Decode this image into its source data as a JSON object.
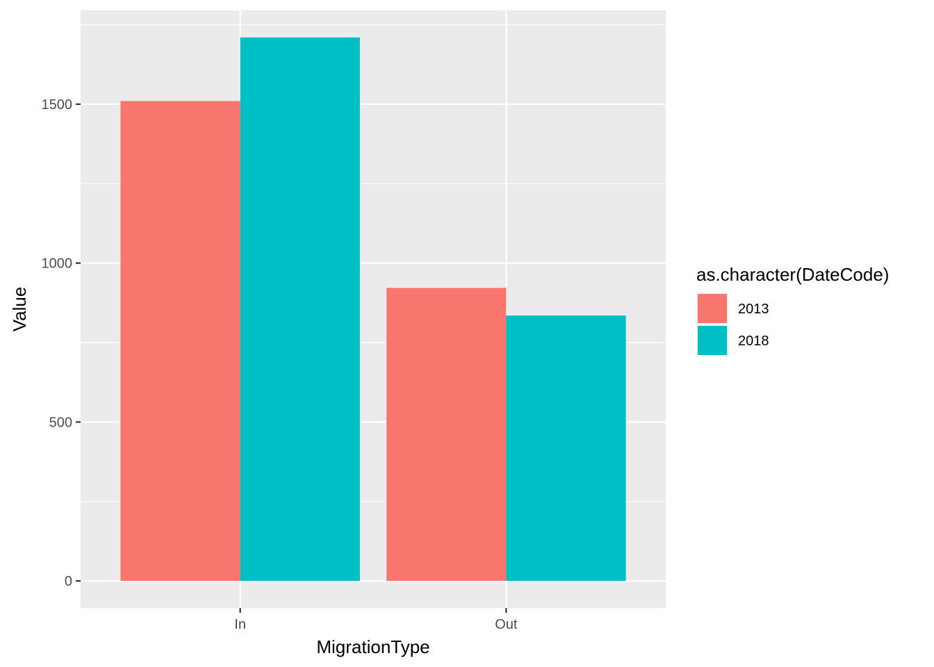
{
  "chart_data": {
    "type": "bar",
    "categories": [
      "In",
      "Out"
    ],
    "series": [
      {
        "name": "2013",
        "values": [
          1510,
          922
        ],
        "color": "#F8766D"
      },
      {
        "name": "2018",
        "values": [
          1710,
          835
        ],
        "color": "#00BFC4"
      }
    ],
    "xlabel": "MigrationType",
    "ylabel": "Value",
    "ylim": [
      -85,
      1795
    ],
    "yticks": [
      0,
      500,
      1000,
      1500
    ],
    "ytick_labels": [
      "0",
      "500",
      "1000",
      "1500"
    ],
    "grid": true,
    "legend": {
      "title": "as.character(DateCode)",
      "placement": "right"
    },
    "panel_color": "#EBEBEB",
    "grid_color": "#FFFFFF"
  }
}
